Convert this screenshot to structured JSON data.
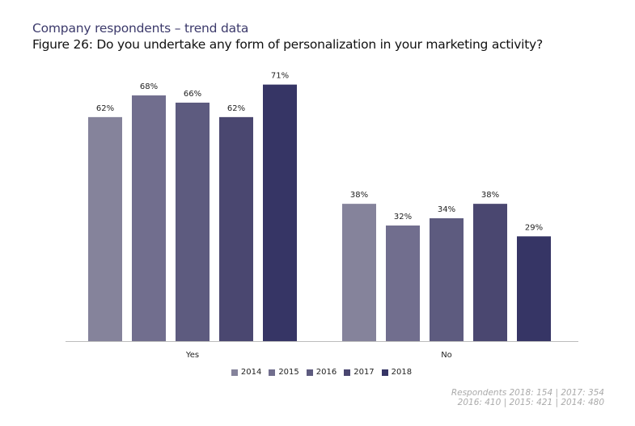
{
  "header": {
    "subtitle": "Company respondents – trend data",
    "title": "Figure 26: Do you undertake any form of personalization in your marketing activity?"
  },
  "chart_data": {
    "type": "bar",
    "title": "Figure 26: Do you undertake any form of personalization in your marketing activity?",
    "xlabel": "",
    "ylabel": "",
    "ylim": [
      0,
      80
    ],
    "grid": false,
    "legend_position": "bottom",
    "categories": [
      "Yes",
      "No"
    ],
    "series": [
      {
        "name": "2014",
        "color": "#85839b",
        "values": [
          62,
          38
        ],
        "labels": [
          "62%",
          "38%"
        ]
      },
      {
        "name": "2015",
        "color": "#716e8e",
        "values": [
          68,
          32
        ],
        "labels": [
          "68%",
          "32%"
        ]
      },
      {
        "name": "2016",
        "color": "#5d5b7f",
        "values": [
          66,
          34
        ],
        "labels": [
          "66%",
          "34%"
        ]
      },
      {
        "name": "2017",
        "color": "#4a4770",
        "values": [
          62,
          38
        ],
        "labels": [
          "62%",
          "38%"
        ]
      },
      {
        "name": "2018",
        "color": "#363565",
        "values": [
          71,
          29
        ],
        "labels": [
          "71%",
          "29%"
        ]
      }
    ]
  },
  "footnote": {
    "line1": "Respondents 2018: 154 | 2017: 354",
    "line2": "2016: 410 | 2015: 421 | 2014: 480"
  }
}
